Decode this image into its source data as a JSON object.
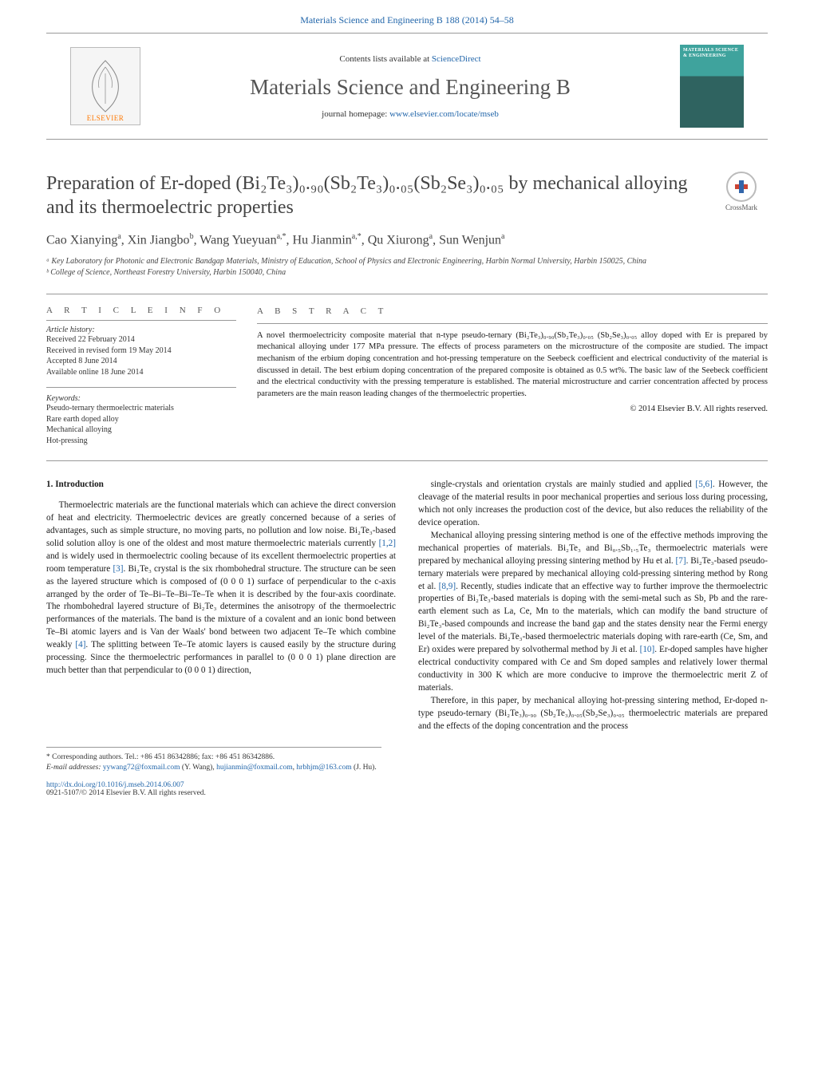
{
  "journal_ref": "Materials Science and Engineering B 188 (2014) 54–58",
  "banner": {
    "contents_prefix": "Contents lists available at ",
    "contents_link": "ScienceDirect",
    "journal_name": "Materials Science and Engineering B",
    "homepage_prefix": "journal homepage: ",
    "homepage_link": "www.elsevier.com/locate/mseb",
    "publisher_name": "ELSEVIER",
    "cover_text": "MATERIALS SCIENCE & ENGINEERING"
  },
  "crossmark_label": "CrossMark",
  "title": "Preparation of Er-doped (Bi₂Te₃)₀.₉₀(Sb₂Te₃)₀.₀₅(Sb₂Se₃)₀.₀₅ by mechanical alloying and its thermoelectric properties",
  "authors_html": "Cao Xianying<span class='aff-sup'>a</span>, Xin Jiangbo<span class='aff-sup'>b</span>, Wang Yueyuan<span class='aff-sup'>a,*</span>, Hu Jianmin<span class='aff-sup'>a,*</span>, Qu Xiurong<span class='aff-sup'>a</span>, Sun Wenjun<span class='aff-sup'>a</span>",
  "affiliations": [
    "ᵃ Key Laboratory for Photonic and Electronic Bandgap Materials, Ministry of Education, School of Physics and Electronic Engineering, Harbin Normal University, Harbin 150025, China",
    "ᵇ College of Science, Northeast Forestry University, Harbin 150040, China"
  ],
  "article_info": {
    "head": "A R T I C L E   I N F O",
    "history_head": "Article history:",
    "history": [
      "Received 22 February 2014",
      "Received in revised form 19 May 2014",
      "Accepted 8 June 2014",
      "Available online 18 June 2014"
    ],
    "keywords_head": "Keywords:",
    "keywords": [
      "Pseudo-ternary thermoelectric materials",
      "Rare earth doped alloy",
      "Mechanical alloying",
      "Hot-pressing"
    ]
  },
  "abstract": {
    "head": "A B S T R A C T",
    "body": "A novel thermoelectricity composite material that n-type pseudo-ternary (Bi₂Te₃)₀.₉₀(Sb₂Te₃)₀.₀₅ (Sb₂Se₃)₀.₀₅ alloy doped with Er is prepared by mechanical alloying under 177 MPa pressure. The effects of process parameters on the microstructure of the composite are studied. The impact mechanism of the erbium doping concentration and hot-pressing temperature on the Seebeck coefficient and electrical conductivity of the material is discussed in detail. The best erbium doping concentration of the prepared composite is obtained as 0.5 wt%. The basic law of the Seebeck coefficient and the electrical conductivity with the pressing temperature is established. The material microstructure and carrier concentration affected by process parameters are the main reason leading changes of the thermoelectric properties.",
    "copyright": "© 2014 Elsevier B.V. All rights reserved."
  },
  "intro_head": "1.  Introduction",
  "col1_p1": "Thermoelectric materials are the functional materials which can achieve the direct conversion of heat and electricity. Thermoelectric devices are greatly concerned because of a series of advantages, such as simple structure, no moving parts, no pollution and low noise. Bi₂Te₃-based solid solution alloy is one of the oldest and most mature thermoelectric materials currently <span class='ref-link'>[1,2]</span> and is widely used in thermoelectric cooling because of its excellent thermoelectric properties at room temperature <span class='ref-link'>[3]</span>. Bi₂Te₃ crystal is the six rhombohedral structure. The structure can be seen as the layered structure which is composed of (0 0 0 1) surface of perpendicular to the c-axis arranged by the order of Te–Bi–Te–Bi–Te–Te when it is described by the four-axis coordinate. The rhombohedral layered structure of Bi₂Te₃ determines the anisotropy of the thermoelectric performances of the materials. The band is the mixture of a covalent and an ionic bond between Te–Bi atomic layers and is Van der Waals' bond between two adjacent Te–Te which combine weakly <span class='ref-link'>[4]</span>. The splitting between Te–Te atomic layers is caused easily by the structure during processing. Since the thermoelectric performances in parallel to (0 0 0 1) plane direction are much better than that perpendicular to (0 0 0 1) direction,",
  "col2_p1": "single-crystals and orientation crystals are mainly studied and applied <span class='ref-link'>[5,6]</span>. However, the cleavage of the material results in poor mechanical properties and serious loss during processing, which not only increases the production cost of the device, but also reduces the reliability of the device operation.",
  "col2_p2": "Mechanical alloying pressing sintering method is one of the effective methods improving the mechanical properties of materials. Bi₂Te₃ and Bi₀.₅Sb₁.₅Te₃ thermoelectric materials were prepared by mechanical alloying pressing sintering method by Hu et al. <span class='ref-link'>[7]</span>. Bi₂Te₃-based pseudo-ternary materials were prepared by mechanical alloying cold-pressing sintering method by Rong et al. <span class='ref-link'>[8,9]</span>. Recently, studies indicate that an effective way to further improve the thermoelectric properties of Bi₂Te₃-based materials is doping with the semi-metal such as Sb, Pb and the rare-earth element such as La, Ce, Mn to the materials, which can modify the band structure of Bi₂Te₃-based compounds and increase the band gap and the states density near the Fermi energy level of the materials. Bi₂Te₃-based thermoelectric materials doping with rare-earth (Ce, Sm, and Er) oxides were prepared by solvothermal method by Ji et al. <span class='ref-link'>[10]</span>. Er-doped samples have higher electrical conductivity compared with Ce and Sm doped samples and relatively lower thermal conductivity in 300 K which are more conducive to improve the thermoelectric merit Z of materials.",
  "col2_p3": "Therefore, in this paper, by mechanical alloying hot-pressing sintering method, Er-doped n-type pseudo-ternary (Bi₂Te₃)₀.₉₀ (Sb₂Te₃)₀.₀₅(Sb₂Se₃)₀.₀₅ thermoelectric materials are prepared and the effects of the doping concentration and the process",
  "footnotes": {
    "corr": "* Corresponding authors. Tel.: +86 451 86342886; fax: +86 451 86342886.",
    "email_label": "E-mail addresses: ",
    "email1": "yywang72@foxmail.com",
    "email1_who": " (Y. Wang), ",
    "email2": "hujianmin@foxmail.com",
    "email2_sep": ", ",
    "email3": "hrbhjm@163.com",
    "email3_who": " (J. Hu)."
  },
  "doi": {
    "url": "http://dx.doi.org/10.1016/j.mseb.2014.06.007",
    "issn": "0921-5107/© 2014 Elsevier B.V. All rights reserved."
  },
  "colors": {
    "link": "#2266aa",
    "text": "#1a1a1a",
    "muted": "#555",
    "rule": "#999",
    "elsevier_orange": "#ff7700",
    "cover_top": "#3fa39d",
    "cover_bot": "#2f6360"
  },
  "fontsizes": {
    "title": 24,
    "journal": 27,
    "authors": 16,
    "body": 11.2,
    "abstract": 10.5,
    "info": 10,
    "foot": 9.5
  }
}
